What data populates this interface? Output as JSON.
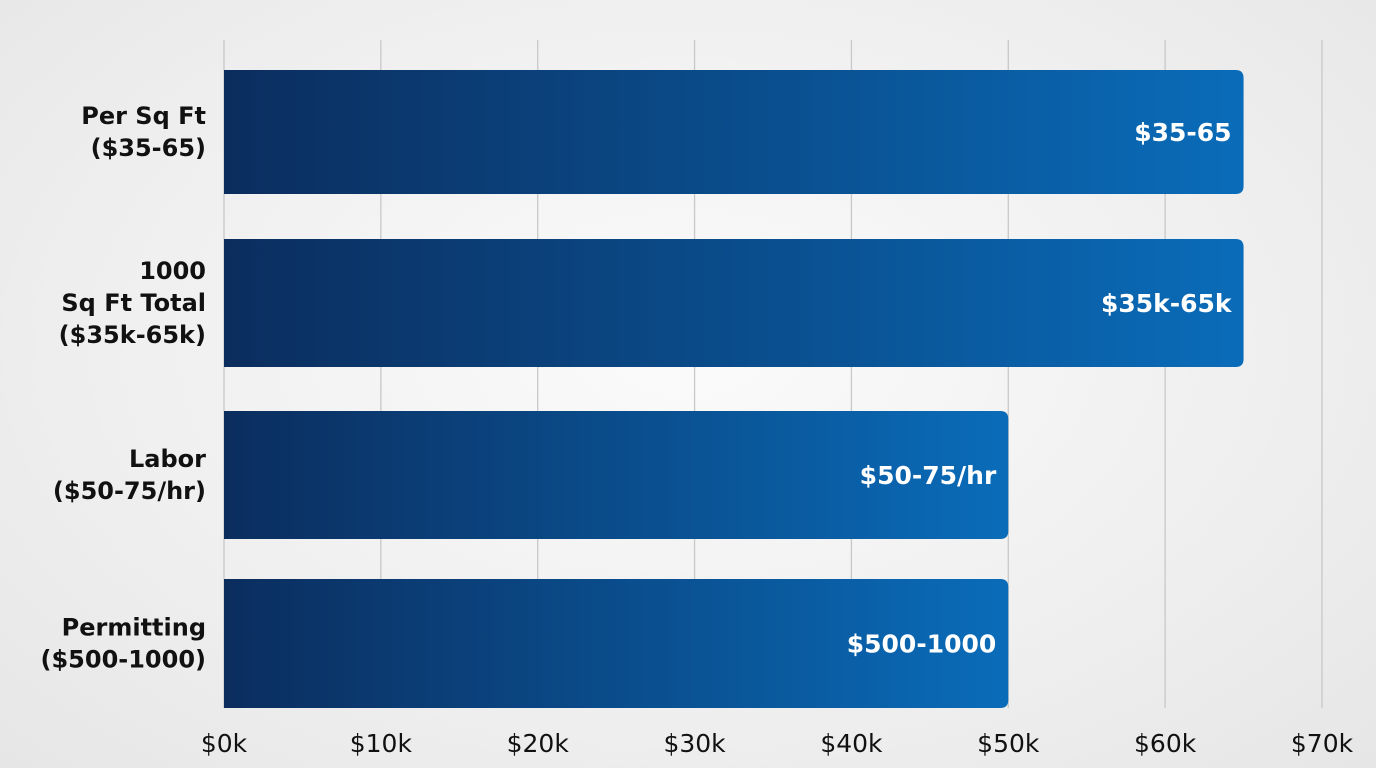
{
  "chart_data": {
    "type": "bar",
    "orientation": "horizontal",
    "categories": [
      [
        "Per Sq Ft",
        "($35-65)"
      ],
      [
        "1000",
        "Sq Ft Total",
        "($35k-65k)"
      ],
      [
        "Labor",
        "($50-75/hr)"
      ],
      [
        "Permitting",
        "($500-1000)"
      ]
    ],
    "values": [
      65000,
      65000,
      50000,
      50000
    ],
    "data_labels": [
      "$35-65",
      "$35k-65k",
      "$50-75/hr",
      "$500-1000"
    ],
    "xlim": [
      0,
      70000
    ],
    "xticks": [
      0,
      10000,
      20000,
      30000,
      40000,
      50000,
      60000,
      70000
    ],
    "xtick_labels": [
      "$0k",
      "$10k",
      "$20k",
      "$30k",
      "$40k",
      "$50k",
      "$60k",
      "$70k"
    ],
    "title": "",
    "xlabel": "",
    "ylabel": "",
    "grid": "vertical",
    "colors": {
      "bar_start": "#0b2d5e",
      "bar_end": "#0a6cb9",
      "grid": "#c8c8c8"
    }
  }
}
